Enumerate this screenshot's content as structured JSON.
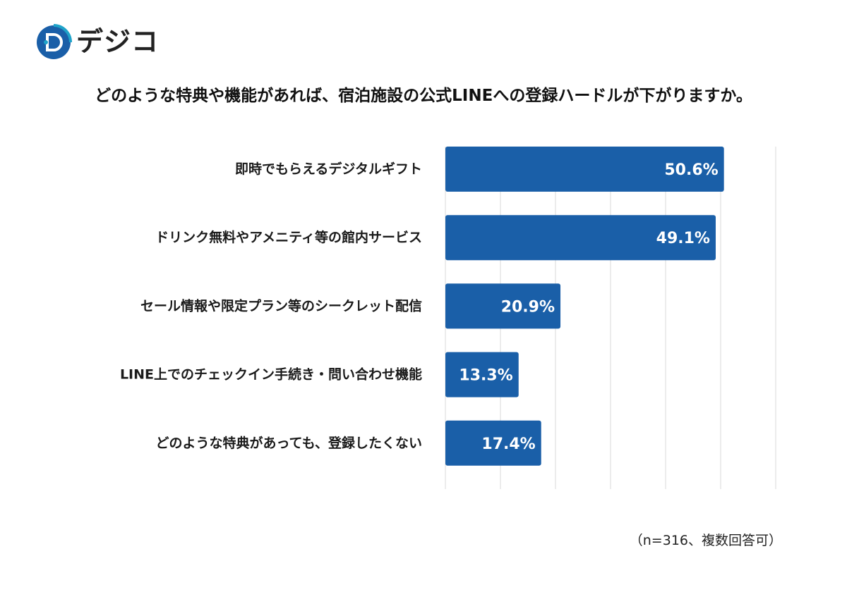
{
  "brand": {
    "name": "デジコ",
    "logo_letter": "D",
    "color": "#1a5fa8",
    "accent": "#1fa3c9"
  },
  "title": "どのような特典や機能があれば、宿泊施設の公式LINEへの登録ハードルが下がりますか。",
  "note": "（n=316、複数回答可）",
  "chart_data": {
    "type": "bar",
    "orientation": "horizontal",
    "categories": [
      "即時でもらえるデジタルギフト",
      "ドリンク無料やアメニティ等の館内サービス",
      "セール情報や限定プラン等のシークレット配信",
      "LINE上でのチェックイン手続き・問い合わせ機能",
      "どのような特典があっても、登録したくない"
    ],
    "values": [
      50.6,
      49.1,
      20.9,
      13.3,
      17.4
    ],
    "value_labels": [
      "50.6%",
      "49.1%",
      "20.9%",
      "13.3%",
      "17.4%"
    ],
    "xlim": [
      0,
      60
    ],
    "grid": true,
    "bar_color": "#1a5fa8",
    "label_color": "#ffffff"
  }
}
